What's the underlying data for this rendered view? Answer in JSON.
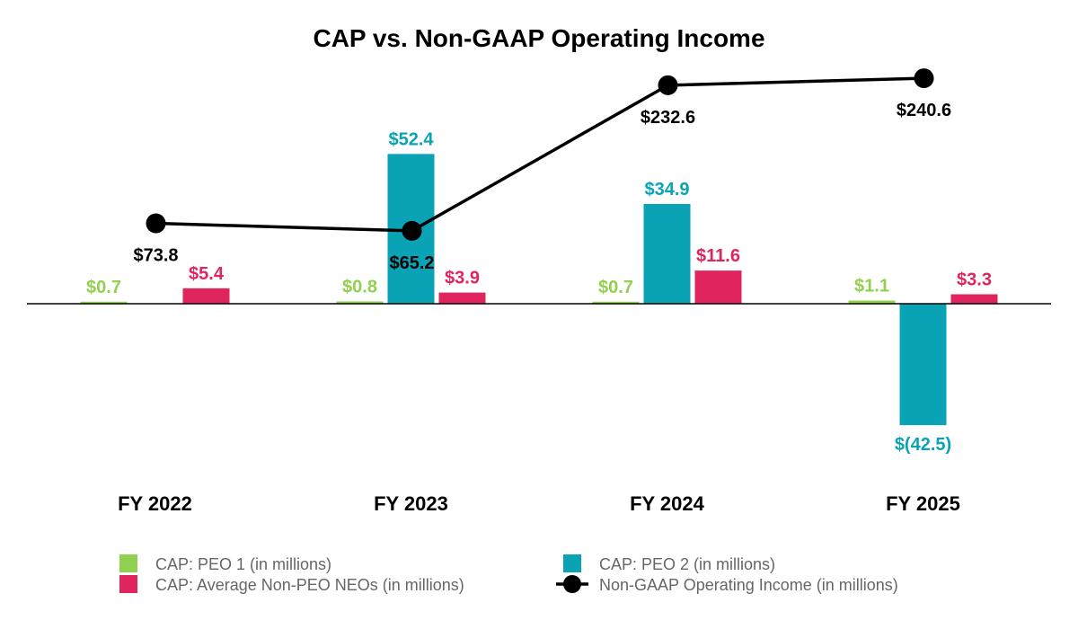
{
  "chart_data": {
    "type": "bar",
    "title": "CAP vs. Non-GAAP Operating Income",
    "categories": [
      "FY 2022",
      "FY 2023",
      "FY 2024",
      "FY 2025"
    ],
    "series": [
      {
        "name": "CAP: PEO 1 (in millions)",
        "kind": "bar",
        "color": "#92d050",
        "values": [
          0.7,
          0.8,
          0.7,
          1.1
        ],
        "labels": [
          "$0.7",
          "$0.8",
          "$0.7",
          "$1.1"
        ]
      },
      {
        "name": "CAP: PEO 2 (in millions)",
        "kind": "bar",
        "color": "#0aa3b5",
        "values": [
          null,
          52.4,
          34.9,
          -42.5
        ],
        "labels": [
          "",
          "$52.4",
          "$34.9",
          "$(42.5)"
        ]
      },
      {
        "name": "CAP: Average Non-PEO NEOs (in millions)",
        "kind": "bar",
        "color": "#e0245e",
        "values": [
          5.4,
          3.9,
          11.6,
          3.3
        ],
        "labels": [
          "$5.4",
          "$3.9",
          "$11.6",
          "$3.3"
        ]
      },
      {
        "name": "Non-GAAP Operating Income (in millions)",
        "kind": "line",
        "color": "#000000",
        "values": [
          73.8,
          65.2,
          232.6,
          240.6
        ],
        "labels": [
          "$73.8",
          "$65.2",
          "$232.6",
          "$240.6"
        ]
      }
    ],
    "bar_ylim": [
      -55,
      70
    ],
    "line_ylim": [
      -300,
      280
    ],
    "legend_position": "bottom"
  }
}
